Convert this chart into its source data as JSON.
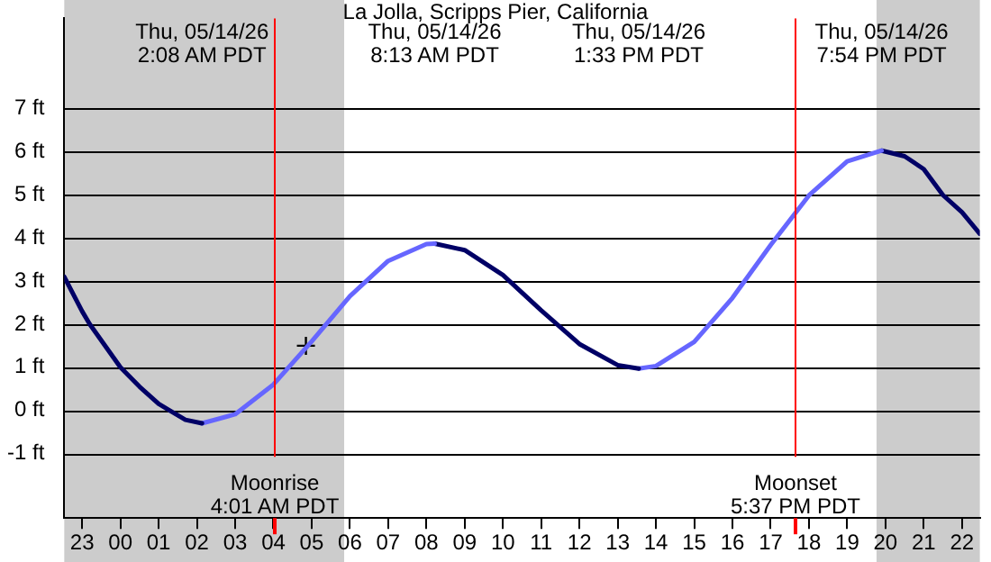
{
  "chart_data": {
    "type": "line",
    "title": "La Jolla, Scripps Pier, California",
    "xlim": [
      "--05-13T22:32",
      "--05-14T22:28"
    ],
    "xticks": [
      {
        "value": "--05-13T23:00",
        "label": "23"
      },
      {
        "value": "--05-14T00:00",
        "label": "00"
      },
      {
        "value": "--05-14T01:00",
        "label": "01"
      },
      {
        "value": "--05-14T02:00",
        "label": "02"
      },
      {
        "value": "--05-14T03:00",
        "label": "03"
      },
      {
        "value": "--05-14T04:00",
        "label": "04"
      },
      {
        "value": "--05-14T05:00",
        "label": "05"
      },
      {
        "value": "--05-14T06:00",
        "label": "06"
      },
      {
        "value": "--05-14T07:00",
        "label": "07"
      },
      {
        "value": "--05-14T08:00",
        "label": "08"
      },
      {
        "value": "--05-14T09:00",
        "label": "09"
      },
      {
        "value": "--05-14T10:00",
        "label": "10"
      },
      {
        "value": "--05-14T11:00",
        "label": "11"
      },
      {
        "value": "--05-14T12:00",
        "label": "12"
      },
      {
        "value": "--05-14T13:00",
        "label": "13"
      },
      {
        "value": "--05-14T14:00",
        "label": "14"
      },
      {
        "value": "--05-14T15:00",
        "label": "15"
      },
      {
        "value": "--05-14T16:00",
        "label": "16"
      },
      {
        "value": "--05-14T17:00",
        "label": "17"
      },
      {
        "value": "--05-14T18:00",
        "label": "18"
      },
      {
        "value": "--05-14T19:00",
        "label": "19"
      },
      {
        "value": "--05-14T20:00",
        "label": "20"
      },
      {
        "value": "--05-14T21:00",
        "label": "21"
      },
      {
        "value": "--05-14T22:00",
        "label": "22"
      }
    ],
    "ylim": [
      -2.5,
      9.1
    ],
    "yticks": [
      {
        "value": -1,
        "label": "-1 ft"
      },
      {
        "value": 0,
        "label": "0 ft"
      },
      {
        "value": 1,
        "label": "1 ft"
      },
      {
        "value": 2,
        "label": "2 ft"
      },
      {
        "value": 3,
        "label": "3 ft"
      },
      {
        "value": 4,
        "label": "4 ft"
      },
      {
        "value": 5,
        "label": "5 ft"
      },
      {
        "value": 6,
        "label": "6 ft"
      },
      {
        "value": 7,
        "label": "7 ft"
      }
    ],
    "grid": "y",
    "bands": [
      {
        "axis": "x",
        "from": "--05-13T22:32",
        "to": "--05-14T05:51",
        "color": "#cccccc"
      },
      {
        "axis": "x",
        "from": "--05-14T19:46",
        "to": "--05-14T22:28",
        "color": "#cccccc"
      }
    ],
    "ref_lines": [
      {
        "axis": "x",
        "value": "--05-14T04:01",
        "label": "Moonrise\n4:01 AM PDT",
        "color": "#ff0000"
      },
      {
        "axis": "x",
        "value": "--05-14T17:37",
        "label": "Moonset\n5:37 PM PDT",
        "color": "#ff0000"
      }
    ],
    "annotations": [
      "Thu, 05/14/26\n2:08 AM PDT",
      "Thu, 05/14/26\n8:13 AM PDT",
      "Thu, 05/14/26\n1:33 PM PDT",
      "Thu, 05/14/26\n7:54 PM PDT"
    ],
    "series": [
      {
        "color": "#000066",
        "x": [
          "--05-13T22:32",
          "--05-13T23:00",
          "--05-13T23:12",
          "--05-14T00:00",
          "--05-14T00:30",
          "--05-14T01:00",
          "--05-14T01:17",
          "--05-14T01:42",
          "--05-14T02:08"
        ],
        "values": [
          3.1,
          2.3,
          2.0,
          1.0,
          0.55,
          0.15,
          0,
          -0.22,
          -0.3
        ]
      },
      {
        "color": "#6666ff",
        "x": [
          "--05-14T02:08",
          "--05-14T03:00",
          "--05-14T04:00",
          "--05-14T05:00",
          "--05-14T06:00",
          "--05-14T07:00",
          "--05-14T08:00",
          "--05-14T08:13"
        ],
        "values": [
          -0.3,
          -0.09,
          0.6,
          1.6,
          2.65,
          3.47,
          3.86,
          3.87
        ]
      },
      {
        "color": "#000066",
        "x": [
          "--05-14T08:13",
          "--05-14T09:00",
          "--05-14T10:00",
          "--05-14T11:00",
          "--05-14T12:00",
          "--05-14T13:00",
          "--05-14T13:33"
        ],
        "values": [
          3.87,
          3.72,
          3.14,
          2.32,
          1.54,
          1.05,
          0.97
        ]
      },
      {
        "color": "#6666ff",
        "x": [
          "--05-14T13:33",
          "--05-14T14:00",
          "--05-14T15:00",
          "--05-14T16:00",
          "--05-14T17:00",
          "--05-14T18:00",
          "--05-14T19:00",
          "--05-14T19:54"
        ],
        "values": [
          0.97,
          1.03,
          1.59,
          2.61,
          3.84,
          4.99,
          5.78,
          6.03
        ]
      },
      {
        "color": "#000066",
        "x": [
          "--05-14T19:54",
          "--05-14T20:30",
          "--05-14T21:00",
          "--05-14T21:30",
          "--05-14T22:00",
          "--05-14T22:28"
        ],
        "values": [
          6.03,
          5.9,
          5.6,
          5.0,
          4.6,
          4.1
        ]
      },
      {
        "type": "scatter",
        "color": "#000000",
        "marker": "cross",
        "x": [
          "--05-14T04:51"
        ],
        "values": [
          1.5
        ]
      }
    ]
  }
}
